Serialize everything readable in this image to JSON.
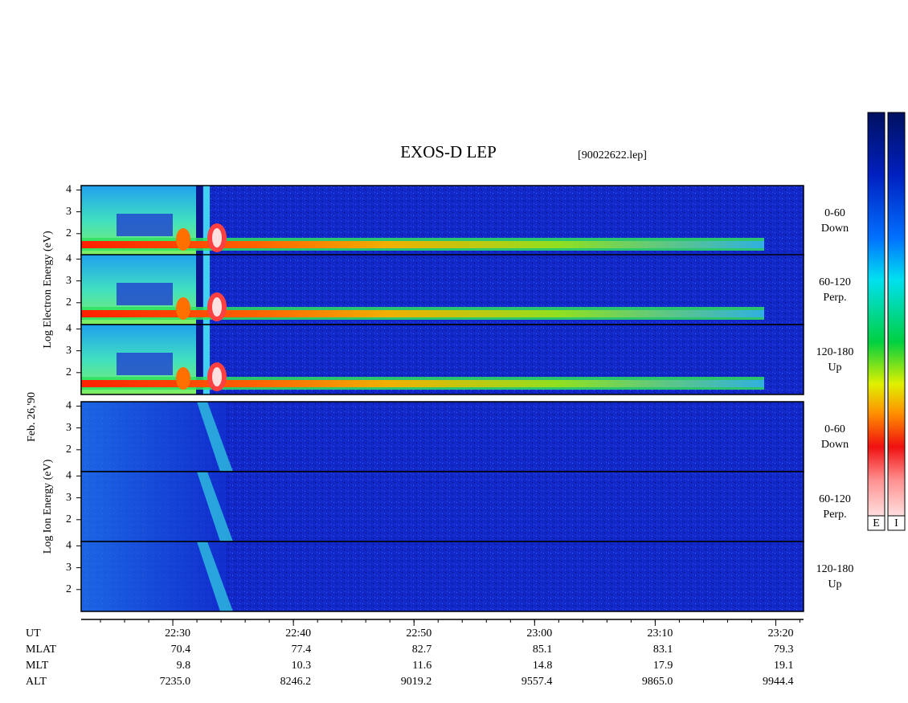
{
  "chart_data": {
    "type": "spectrogram",
    "title": "EXOS-D LEP",
    "file": "[90022622.lep]",
    "date": "Feb. 26,'90",
    "electron": {
      "ylabel": "Log Electron Energy (eV)",
      "panels": [
        {
          "angle": "0-60",
          "direction": "Down"
        },
        {
          "angle": "60-120",
          "direction": "Perp."
        },
        {
          "angle": "120-180",
          "direction": "Up"
        }
      ]
    },
    "ion": {
      "ylabel": "Log Ion Energy (eV)",
      "panels": [
        {
          "angle": "0-60",
          "direction": "Down"
        },
        {
          "angle": "60-120",
          "direction": "Perp."
        },
        {
          "angle": "120-180",
          "direction": "Up"
        }
      ]
    },
    "ylim": [
      1,
      4.2
    ],
    "yticks": [
      2,
      3,
      4
    ],
    "xlim": [
      1342.4,
      1402.3
    ],
    "xticks": [
      {
        "value": 1350,
        "label": "22:30"
      },
      {
        "value": 1360,
        "label": "22:40"
      },
      {
        "value": 1370,
        "label": "22:50"
      },
      {
        "value": 1380,
        "label": "23:00"
      },
      {
        "value": 1390,
        "label": "23:10"
      },
      {
        "value": 1400,
        "label": "23:20"
      }
    ],
    "orbit": [
      {
        "name": "UT"
      },
      {
        "name": "MLAT",
        "values": [
          "70.4",
          "77.4",
          "82.7",
          "85.1",
          "83.1",
          "79.3"
        ]
      },
      {
        "name": "MLT",
        "values": [
          "9.8",
          "10.3",
          "11.6",
          "14.8",
          "17.9",
          "19.1"
        ]
      },
      {
        "name": "ALT",
        "values": [
          "7235.0",
          "8246.2",
          "9019.2",
          "9557.4",
          "9865.0",
          "9944.4"
        ]
      }
    ],
    "colorbar": [
      "E",
      "I"
    ]
  }
}
